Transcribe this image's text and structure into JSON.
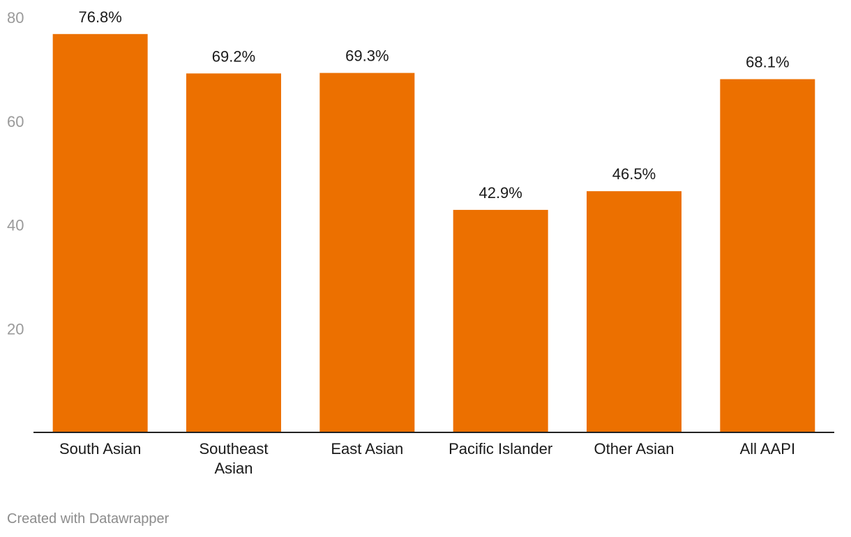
{
  "chart_data": {
    "type": "bar",
    "categories": [
      "South Asian",
      "Southeast Asian",
      "East Asian",
      "Pacific Islander",
      "Other Asian",
      "All AAPI"
    ],
    "category_lines": [
      [
        "South Asian"
      ],
      [
        "Southeast",
        "Asian"
      ],
      [
        "East Asian"
      ],
      [
        "Pacific Islander"
      ],
      [
        "Other Asian"
      ],
      [
        "All AAPI"
      ]
    ],
    "values": [
      76.8,
      69.2,
      69.3,
      42.9,
      46.5,
      68.1
    ],
    "value_labels": [
      "76.8%",
      "69.2%",
      "69.3%",
      "42.9%",
      "46.5%",
      "68.1%"
    ],
    "y_ticks": [
      20,
      40,
      60,
      80
    ],
    "ylim": [
      0,
      80
    ],
    "grid": false,
    "bar_color": "#ec7000",
    "axis_color": "#222222",
    "tick_label_color": "#9a9a9a",
    "label_color": "#1a1a1a"
  },
  "footer": {
    "credit": "Created with Datawrapper"
  }
}
